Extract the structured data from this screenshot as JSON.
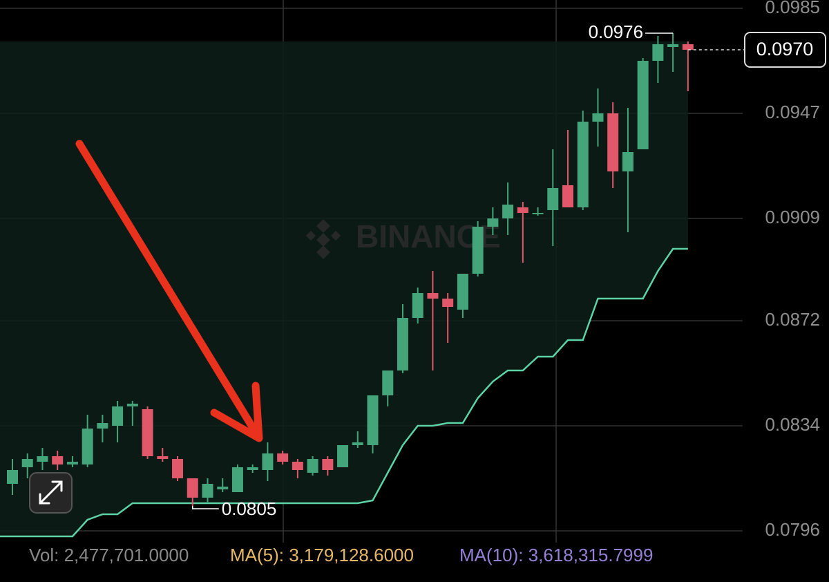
{
  "chart_data": {
    "type": "candlestick",
    "open": [
      0.0813,
      0.0819,
      0.0821,
      0.0823,
      0.082,
      0.082,
      0.0833,
      0.0834,
      0.0841,
      0.084,
      0.0823,
      0.0822,
      0.0815,
      0.0808,
      0.0811,
      0.081,
      0.0818,
      0.0818,
      0.0824,
      0.0821,
      0.0817,
      0.0822,
      0.0819,
      0.0827,
      0.0827,
      0.0845,
      0.0854,
      0.0873,
      0.0882,
      0.088,
      0.0876,
      0.0889,
      0.0906,
      0.0909,
      0.0913,
      0.0911,
      0.0912,
      0.0921,
      0.0913,
      0.0944,
      0.0947,
      0.0926,
      0.0934,
      0.0966,
      0.0971,
      0.0972
    ],
    "high": [
      0.0822,
      0.0824,
      0.0826,
      0.0825,
      0.0823,
      0.0838,
      0.0838,
      0.0843,
      0.0843,
      0.0841,
      0.0826,
      0.0823,
      0.0815,
      0.0815,
      0.0815,
      0.082,
      0.082,
      0.0828,
      0.0825,
      0.0822,
      0.0823,
      0.0823,
      0.0827,
      0.0832,
      0.0845,
      0.0854,
      0.0878,
      0.0884,
      0.089,
      0.0882,
      0.0889,
      0.0908,
      0.0913,
      0.0922,
      0.0915,
      0.0913,
      0.0934,
      0.0941,
      0.0948,
      0.0956,
      0.0951,
      0.0949,
      0.0967,
      0.0975,
      0.0976,
      0.0973
    ],
    "low": [
      0.0809,
      0.0815,
      0.0818,
      0.0818,
      0.0819,
      0.0819,
      0.0828,
      0.0828,
      0.0834,
      0.0822,
      0.0821,
      0.0814,
      0.0805,
      0.0806,
      0.081,
      0.081,
      0.0817,
      0.0814,
      0.082,
      0.0815,
      0.0816,
      0.0816,
      0.0819,
      0.0826,
      0.0824,
      0.0841,
      0.0853,
      0.0871,
      0.0854,
      0.0864,
      0.0873,
      0.0888,
      0.0903,
      0.0903,
      0.0893,
      0.091,
      0.0899,
      0.0913,
      0.0912,
      0.0935,
      0.092,
      0.0904,
      0.0934,
      0.0958,
      0.0962,
      0.0955
    ],
    "close": [
      0.0818,
      0.0822,
      0.0823,
      0.082,
      0.0821,
      0.0833,
      0.0835,
      0.0841,
      0.0842,
      0.0823,
      0.0822,
      0.0815,
      0.0808,
      0.0813,
      0.0812,
      0.0819,
      0.0819,
      0.0824,
      0.0821,
      0.0818,
      0.0822,
      0.0818,
      0.0827,
      0.0828,
      0.0845,
      0.0854,
      0.0873,
      0.0882,
      0.088,
      0.0877,
      0.0889,
      0.0906,
      0.0909,
      0.0914,
      0.0911,
      0.0911,
      0.092,
      0.0913,
      0.0944,
      0.0947,
      0.0926,
      0.0933,
      0.0966,
      0.0972,
      0.0972,
      0.097
    ],
    "lower_band": [
      0.0794,
      0.0794,
      0.0794,
      0.0794,
      0.0794,
      0.08,
      0.0802,
      0.0802,
      0.0806,
      0.0806,
      0.0806,
      0.0806,
      0.0806,
      0.0806,
      0.0806,
      0.0806,
      0.0806,
      0.0806,
      0.0806,
      0.0806,
      0.0806,
      0.0806,
      0.0806,
      0.0806,
      0.0807,
      0.0817,
      0.0827,
      0.0834,
      0.0834,
      0.0835,
      0.0835,
      0.0844,
      0.085,
      0.0854,
      0.0854,
      0.0859,
      0.0859,
      0.0865,
      0.0865,
      0.088,
      0.088,
      0.088,
      0.088,
      0.089,
      0.0898,
      0.0898
    ],
    "up_color": "#45a57a",
    "down_color": "#e2586b",
    "band_color": "#5fd3a8",
    "ylim": [
      0.0792,
      0.0988
    ],
    "yticks": [
      0.0796,
      0.0834,
      0.0872,
      0.0909,
      0.0947,
      0.0985
    ],
    "grid": true,
    "high_label": "0.0976",
    "low_label": "0.0805",
    "last_price_label": "0.0970",
    "watermark": "BINANCE",
    "volume_text": "Vol: 2,477,701.0000",
    "ma5_text": "MA(5): 3,179,128.6000",
    "ma10_text": "MA(10): 3,618,315.7999"
  }
}
